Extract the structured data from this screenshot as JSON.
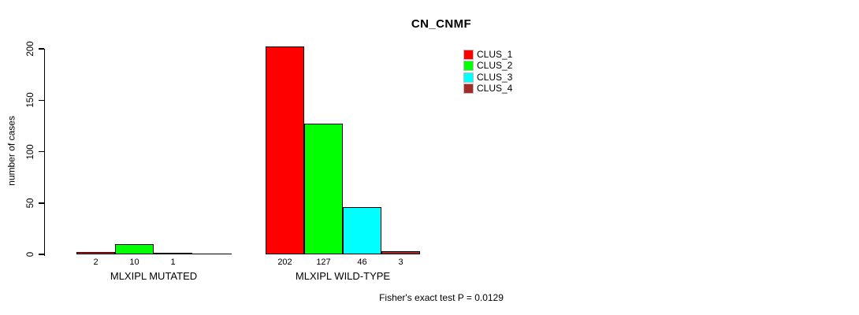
{
  "chart_data": {
    "type": "bar",
    "title": "CN_CNMF",
    "ylabel": "number of cases",
    "xlabel": "",
    "ylim": [
      0,
      200
    ],
    "yticks": [
      0,
      50,
      100,
      150,
      200
    ],
    "grid": false,
    "legend_position": "top-right",
    "categories": [
      "MLXIPL MUTATED",
      "MLXIPL WILD-TYPE"
    ],
    "series": [
      {
        "name": "CLUS_1",
        "color": "#FF0000",
        "values": [
          2,
          202
        ]
      },
      {
        "name": "CLUS_2",
        "color": "#00FF00",
        "values": [
          10,
          127
        ]
      },
      {
        "name": "CLUS_3",
        "color": "#00FFFF",
        "values": [
          1,
          46
        ]
      },
      {
        "name": "CLUS_4",
        "color": "#A52A2A",
        "values": [
          0,
          3
        ]
      }
    ],
    "bar_value_labels": [
      [
        "2",
        "10",
        "1",
        ""
      ],
      [
        "202",
        "127",
        "46",
        "3"
      ]
    ],
    "annotation": "Fisher's exact test P = 0.0129",
    "axis_color": "#000000",
    "bar_border_color": "#000000"
  }
}
